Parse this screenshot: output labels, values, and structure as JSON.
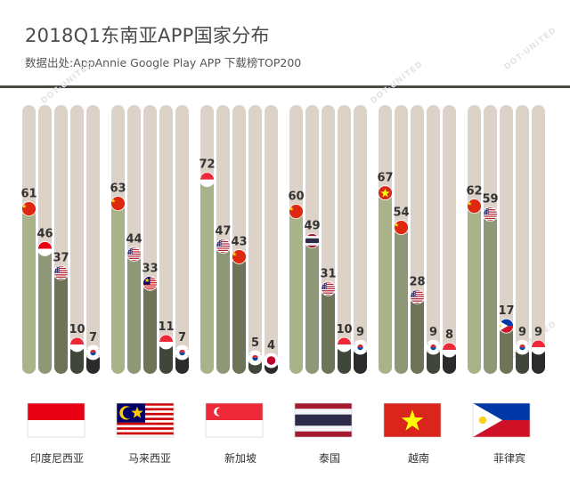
{
  "title": "2018Q1东南亚APP国家分布",
  "subtitle": "数据出处:AppAnnie Google Play APP 下载榜TOP200",
  "watermark": "DOT-UNITED",
  "colors": {
    "track": "#ddd2c8",
    "bar1": "#a8b389",
    "bar2": "#8e9877",
    "bar3": "#6d7457",
    "bar4": "#3f463a",
    "bar5": "#2b2b2b",
    "rule": "#4b4b45"
  },
  "chart_data": {
    "type": "bar",
    "title": "2018Q1东南亚APP国家分布",
    "ylim": [
      0,
      100
    ],
    "groups": [
      {
        "name": "印度尼西亚",
        "flag": "indonesia",
        "bars": [
          {
            "value": 61,
            "flag": "china"
          },
          {
            "value": 46,
            "flag": "indonesia"
          },
          {
            "value": 37,
            "flag": "usa"
          },
          {
            "value": 10,
            "flag": "singapore"
          },
          {
            "value": 7,
            "flag": "korea"
          }
        ]
      },
      {
        "name": "马来西亚",
        "flag": "malaysia",
        "bars": [
          {
            "value": 63,
            "flag": "china"
          },
          {
            "value": 44,
            "flag": "usa"
          },
          {
            "value": 33,
            "flag": "malaysia"
          },
          {
            "value": 11,
            "flag": "singapore"
          },
          {
            "value": 7,
            "flag": "korea"
          }
        ]
      },
      {
        "name": "新加坡",
        "flag": "singapore",
        "bars": [
          {
            "value": 72,
            "flag": "singapore"
          },
          {
            "value": 47,
            "flag": "usa"
          },
          {
            "value": 43,
            "flag": "china"
          },
          {
            "value": 5,
            "flag": "korea"
          },
          {
            "value": 4,
            "flag": "japan"
          }
        ]
      },
      {
        "name": "泰国",
        "flag": "thailand",
        "bars": [
          {
            "value": 60,
            "flag": "china"
          },
          {
            "value": 49,
            "flag": "thailand"
          },
          {
            "value": 31,
            "flag": "usa"
          },
          {
            "value": 10,
            "flag": "singapore"
          },
          {
            "value": 9,
            "flag": "korea"
          }
        ]
      },
      {
        "name": "越南",
        "flag": "vietnam",
        "bars": [
          {
            "value": 67,
            "flag": "vietnam"
          },
          {
            "value": 54,
            "flag": "china"
          },
          {
            "value": 28,
            "flag": "usa"
          },
          {
            "value": 9,
            "flag": "korea"
          },
          {
            "value": 8,
            "flag": "singapore"
          }
        ]
      },
      {
        "name": "菲律宾",
        "flag": "philippines",
        "bars": [
          {
            "value": 62,
            "flag": "china"
          },
          {
            "value": 59,
            "flag": "usa"
          },
          {
            "value": 17,
            "flag": "philippines"
          },
          {
            "value": 9,
            "flag": "korea"
          },
          {
            "value": 9,
            "flag": "singapore"
          }
        ]
      }
    ]
  }
}
